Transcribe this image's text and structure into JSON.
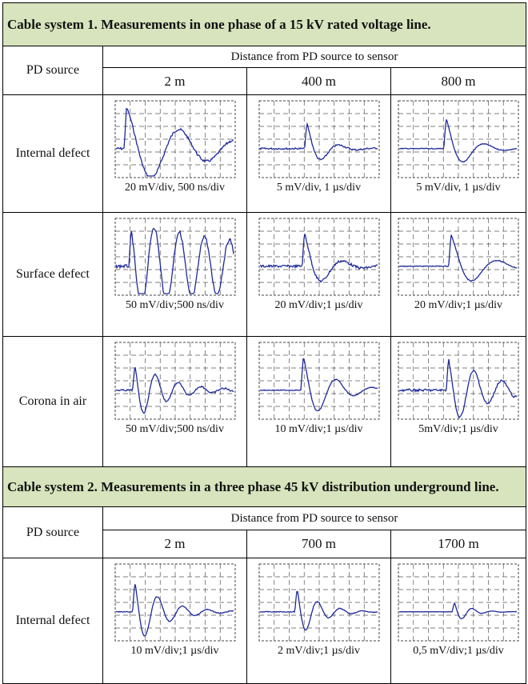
{
  "sections": [
    {
      "title": "Cable system 1. Measurements in one phase of a 15 kV rated voltage line.",
      "source_header": "PD source",
      "distance_header": "Distance from PD source to sensor",
      "distances": [
        "2 m",
        "400 m",
        "800 m"
      ],
      "rows": [
        {
          "source": "Internal defect",
          "scales": [
            "20 mV/div, 500 ns/div",
            "5 mV/div, 1 µs/div",
            "5 mV/div, 1 µs/div"
          ]
        },
        {
          "source": "Surface defect",
          "scales": [
            "50 mV/div;500 ns/div",
            "20 mV/div;1 µs/div",
            "20 mV/div;1 µs/div"
          ]
        },
        {
          "source": "Corona in air",
          "scales": [
            "50 mV/div;500 ns/div",
            "10 mV/div;1 µs/div",
            "5mV/div;1 µs/div"
          ]
        }
      ]
    },
    {
      "title": "Cable system 2. Measurements in a three phase 45 kV distribution underground line.",
      "source_header": "PD source",
      "distance_header": "Distance from PD source to sensor",
      "distances": [
        "2 m",
        "700 m",
        "1700 m"
      ],
      "rows": [
        {
          "source": "Internal defect",
          "scales": [
            "10 mV/div;1 µs/div",
            "2 mV/div;1 µs/div",
            "0,5 mV/div;1 µs/div"
          ]
        }
      ]
    }
  ]
}
